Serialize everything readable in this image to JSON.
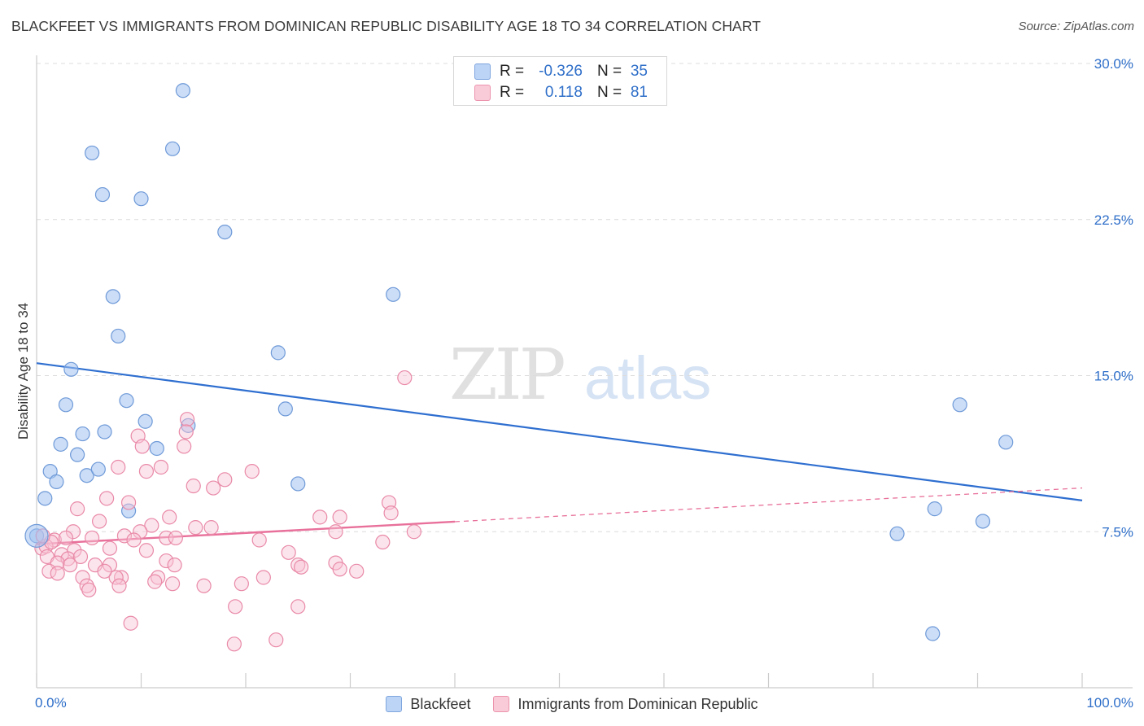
{
  "title": "BLACKFEET VS IMMIGRANTS FROM DOMINICAN REPUBLIC DISABILITY AGE 18 TO 34 CORRELATION CHART",
  "source": "Source: ZipAtlas.com",
  "watermark": {
    "zip": "ZIP",
    "atlas": "atlas"
  },
  "stats": [
    {
      "r_label": "R =",
      "r_value": "-0.326",
      "n_label": "N =",
      "n_value": "35",
      "color": "#7fa6df"
    },
    {
      "r_label": "R =",
      "r_value": "0.118",
      "n_label": "N =",
      "n_value": "81",
      "color": "#ec93ad"
    }
  ],
  "legend": [
    "Blackfeet",
    "Immigrants from Dominican Republic"
  ],
  "chart_data": {
    "type": "scatter",
    "xlabel": "",
    "ylabel": "Disability Age 18 to 34",
    "xlim": [
      0,
      100
    ],
    "ylim": [
      0,
      30
    ],
    "y_ticks": [
      7.5,
      15.0,
      22.5,
      30.0
    ],
    "y_tick_labels": [
      "7.5%",
      "15.0%",
      "22.5%",
      "30.0%"
    ],
    "x_tick_labels": [
      "0.0%",
      "100.0%"
    ],
    "grid": true,
    "legend_position": "bottom",
    "series": [
      {
        "name": "Blackfeet",
        "color": "#7fa6df",
        "trend": {
          "x": [
            0,
            100
          ],
          "y": [
            15.6,
            9.0
          ],
          "dashed_from": null
        },
        "points": [
          [
            14.0,
            28.7
          ],
          [
            5.3,
            25.7
          ],
          [
            13.0,
            25.9
          ],
          [
            6.3,
            23.7
          ],
          [
            10.0,
            23.5
          ],
          [
            18.0,
            21.9
          ],
          [
            7.3,
            18.8
          ],
          [
            34.1,
            18.9
          ],
          [
            7.8,
            16.9
          ],
          [
            23.1,
            16.1
          ],
          [
            3.3,
            15.3
          ],
          [
            8.6,
            13.8
          ],
          [
            2.8,
            13.6
          ],
          [
            23.8,
            13.4
          ],
          [
            4.4,
            12.2
          ],
          [
            6.5,
            12.3
          ],
          [
            10.4,
            12.8
          ],
          [
            14.5,
            12.6
          ],
          [
            2.3,
            11.7
          ],
          [
            11.5,
            11.5
          ],
          [
            3.9,
            11.2
          ],
          [
            1.3,
            10.4
          ],
          [
            4.8,
            10.2
          ],
          [
            5.9,
            10.5
          ],
          [
            1.9,
            9.9
          ],
          [
            25.0,
            9.8
          ],
          [
            0.8,
            9.1
          ],
          [
            8.8,
            8.5
          ],
          [
            85.9,
            8.6
          ],
          [
            0.0,
            7.3
          ],
          [
            82.3,
            7.4
          ],
          [
            88.3,
            13.6
          ],
          [
            92.7,
            11.8
          ],
          [
            90.5,
            8.0
          ],
          [
            85.7,
            2.6
          ]
        ]
      },
      {
        "name": "Immigrants from Dominican Republic",
        "color": "#ec93ad",
        "trend": {
          "x": [
            0,
            100
          ],
          "y": [
            6.9,
            9.6
          ],
          "dashed_from": 40
        },
        "points": [
          [
            35.2,
            14.9
          ],
          [
            14.4,
            12.9
          ],
          [
            14.3,
            12.3
          ],
          [
            9.7,
            12.1
          ],
          [
            14.1,
            11.6
          ],
          [
            10.1,
            11.6
          ],
          [
            7.8,
            10.6
          ],
          [
            11.9,
            10.6
          ],
          [
            10.5,
            10.4
          ],
          [
            20.6,
            10.4
          ],
          [
            18.0,
            10.0
          ],
          [
            15.0,
            9.7
          ],
          [
            16.9,
            9.6
          ],
          [
            6.7,
            9.1
          ],
          [
            8.8,
            8.9
          ],
          [
            33.7,
            8.9
          ],
          [
            3.9,
            8.6
          ],
          [
            33.9,
            8.4
          ],
          [
            12.7,
            8.2
          ],
          [
            27.1,
            8.2
          ],
          [
            29.0,
            8.2
          ],
          [
            6.0,
            8.0
          ],
          [
            11.0,
            7.8
          ],
          [
            15.2,
            7.7
          ],
          [
            16.7,
            7.7
          ],
          [
            28.6,
            7.5
          ],
          [
            36.1,
            7.5
          ],
          [
            3.5,
            7.5
          ],
          [
            9.9,
            7.5
          ],
          [
            8.4,
            7.3
          ],
          [
            12.4,
            7.2
          ],
          [
            13.3,
            7.2
          ],
          [
            1.7,
            7.1
          ],
          [
            2.8,
            7.2
          ],
          [
            5.3,
            7.2
          ],
          [
            9.3,
            7.1
          ],
          [
            21.3,
            7.1
          ],
          [
            33.1,
            7.0
          ],
          [
            0.5,
            6.7
          ],
          [
            0.9,
            6.8
          ],
          [
            3.6,
            6.6
          ],
          [
            7.0,
            6.7
          ],
          [
            10.5,
            6.6
          ],
          [
            24.1,
            6.5
          ],
          [
            1.0,
            6.3
          ],
          [
            2.4,
            6.4
          ],
          [
            3.0,
            6.2
          ],
          [
            4.2,
            6.3
          ],
          [
            12.4,
            6.1
          ],
          [
            2.0,
            6.0
          ],
          [
            3.2,
            5.9
          ],
          [
            5.6,
            5.9
          ],
          [
            7.0,
            5.9
          ],
          [
            13.2,
            5.9
          ],
          [
            25.0,
            5.9
          ],
          [
            28.6,
            6.0
          ],
          [
            25.3,
            5.8
          ],
          [
            29.0,
            5.7
          ],
          [
            30.6,
            5.6
          ],
          [
            1.2,
            5.6
          ],
          [
            2.0,
            5.5
          ],
          [
            4.4,
            5.3
          ],
          [
            8.1,
            5.3
          ],
          [
            7.6,
            5.3
          ],
          [
            11.6,
            5.3
          ],
          [
            21.7,
            5.3
          ],
          [
            11.3,
            5.1
          ],
          [
            4.8,
            4.9
          ],
          [
            7.9,
            4.9
          ],
          [
            16.0,
            4.9
          ],
          [
            19.6,
            5.0
          ],
          [
            5.0,
            4.7
          ],
          [
            19.0,
            3.9
          ],
          [
            25.0,
            3.9
          ],
          [
            9.0,
            3.1
          ],
          [
            18.9,
            2.1
          ],
          [
            22.9,
            2.3
          ],
          [
            1.4,
            7.0
          ],
          [
            0.6,
            7.3
          ],
          [
            6.5,
            5.6
          ],
          [
            13.0,
            5.0
          ]
        ]
      }
    ]
  }
}
